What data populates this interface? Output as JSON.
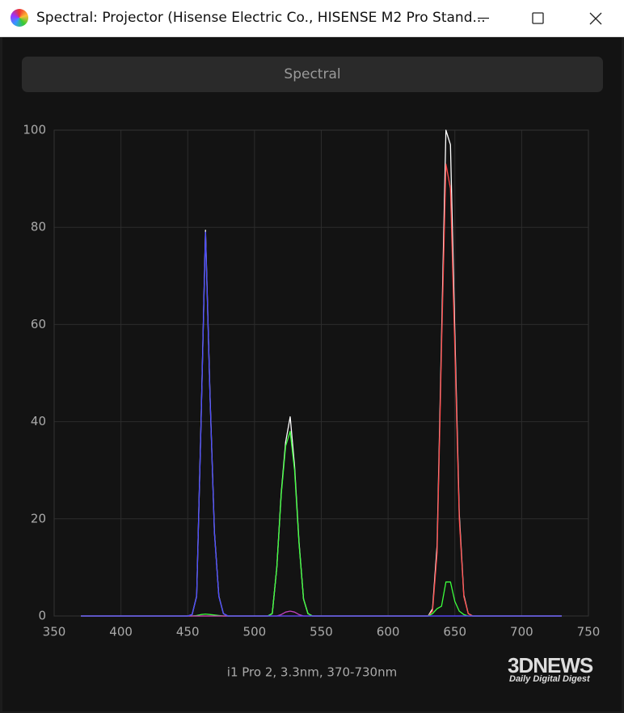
{
  "window": {
    "title": "Spectral: Projector (Hisense Electric Co., HISENSE M2 Pro Stand..."
  },
  "button": "Spectral",
  "watermark": {
    "logo": "3DNEWS",
    "tagline": "Daily Digital Digest"
  },
  "chart_data": {
    "type": "line",
    "caption": "i1 Pro 2, 3.3nm, 370-730nm",
    "x": [
      370,
      400,
      430,
      450,
      453.3,
      456.7,
      460,
      463.3,
      466.7,
      470,
      473.3,
      476.7,
      480,
      500,
      510,
      513.3,
      516.7,
      520,
      523.3,
      526.7,
      530,
      533.3,
      536.7,
      540,
      543.3,
      550,
      600,
      630,
      633.3,
      636.7,
      640,
      643.3,
      646.7,
      650,
      653.3,
      656.7,
      660,
      663.3,
      680,
      700,
      730
    ],
    "series": [
      {
        "color": "#ffffff",
        "values": [
          0,
          0,
          0,
          0,
          0.3,
          4.1,
          40.3,
          79.4,
          45.3,
          17.2,
          4.1,
          0.5,
          0,
          0,
          0,
          0.5,
          10,
          25.3,
          35.8,
          41,
          30.8,
          15.3,
          3.5,
          0.5,
          0,
          0,
          0,
          0,
          1.5,
          14.5,
          57,
          100,
          97,
          58,
          21,
          4.3,
          0.5,
          0,
          0,
          0,
          0
        ]
      },
      {
        "color": "#ff4a4a",
        "values": [
          0,
          0,
          0,
          0,
          0,
          0,
          0,
          0,
          0,
          0,
          0,
          0,
          0,
          0,
          0,
          0,
          0,
          0,
          0,
          0,
          0,
          0,
          0,
          0,
          0,
          0,
          0,
          0,
          1,
          13,
          55,
          93,
          88,
          55,
          20,
          4,
          0.5,
          0,
          0,
          0,
          0
        ]
      },
      {
        "color": "#3cff3c",
        "values": [
          0,
          0,
          0,
          0,
          0,
          0.1,
          0.3,
          0.4,
          0.3,
          0.2,
          0.1,
          0,
          0,
          0,
          0,
          0.5,
          10,
          25,
          35,
          38,
          30,
          15,
          3.5,
          0.5,
          0,
          0,
          0,
          0,
          0.5,
          1.5,
          2,
          7,
          7,
          3,
          1,
          0.3,
          0,
          0,
          0,
          0,
          0
        ]
      },
      {
        "color": "#c040c0",
        "values": [
          0,
          0,
          0,
          0,
          0,
          0,
          0,
          0,
          0,
          0,
          0,
          0,
          0,
          0,
          0,
          0,
          0,
          0.3,
          0.8,
          1,
          0.8,
          0.3,
          0,
          0,
          0,
          0,
          0,
          0,
          0,
          0,
          0,
          0,
          0,
          0,
          0,
          0,
          0,
          0,
          0,
          0,
          0
        ]
      },
      {
        "color": "#4a4aff",
        "values": [
          0,
          0,
          0,
          0,
          0.3,
          4,
          40,
          79,
          45,
          17,
          4,
          0.5,
          0,
          0,
          0,
          0,
          0,
          0,
          0,
          0,
          0,
          0,
          0,
          0,
          0,
          0,
          0,
          0,
          0,
          0,
          0,
          0,
          0,
          0,
          0,
          0,
          0,
          0,
          0,
          0,
          0
        ]
      }
    ],
    "xlim": [
      350,
      750
    ],
    "xticks": [
      350,
      400,
      450,
      500,
      550,
      600,
      650,
      700,
      750
    ],
    "ylim": [
      0,
      100
    ],
    "yticks": [
      0,
      20,
      40,
      60,
      80,
      100
    ],
    "grid": true
  }
}
